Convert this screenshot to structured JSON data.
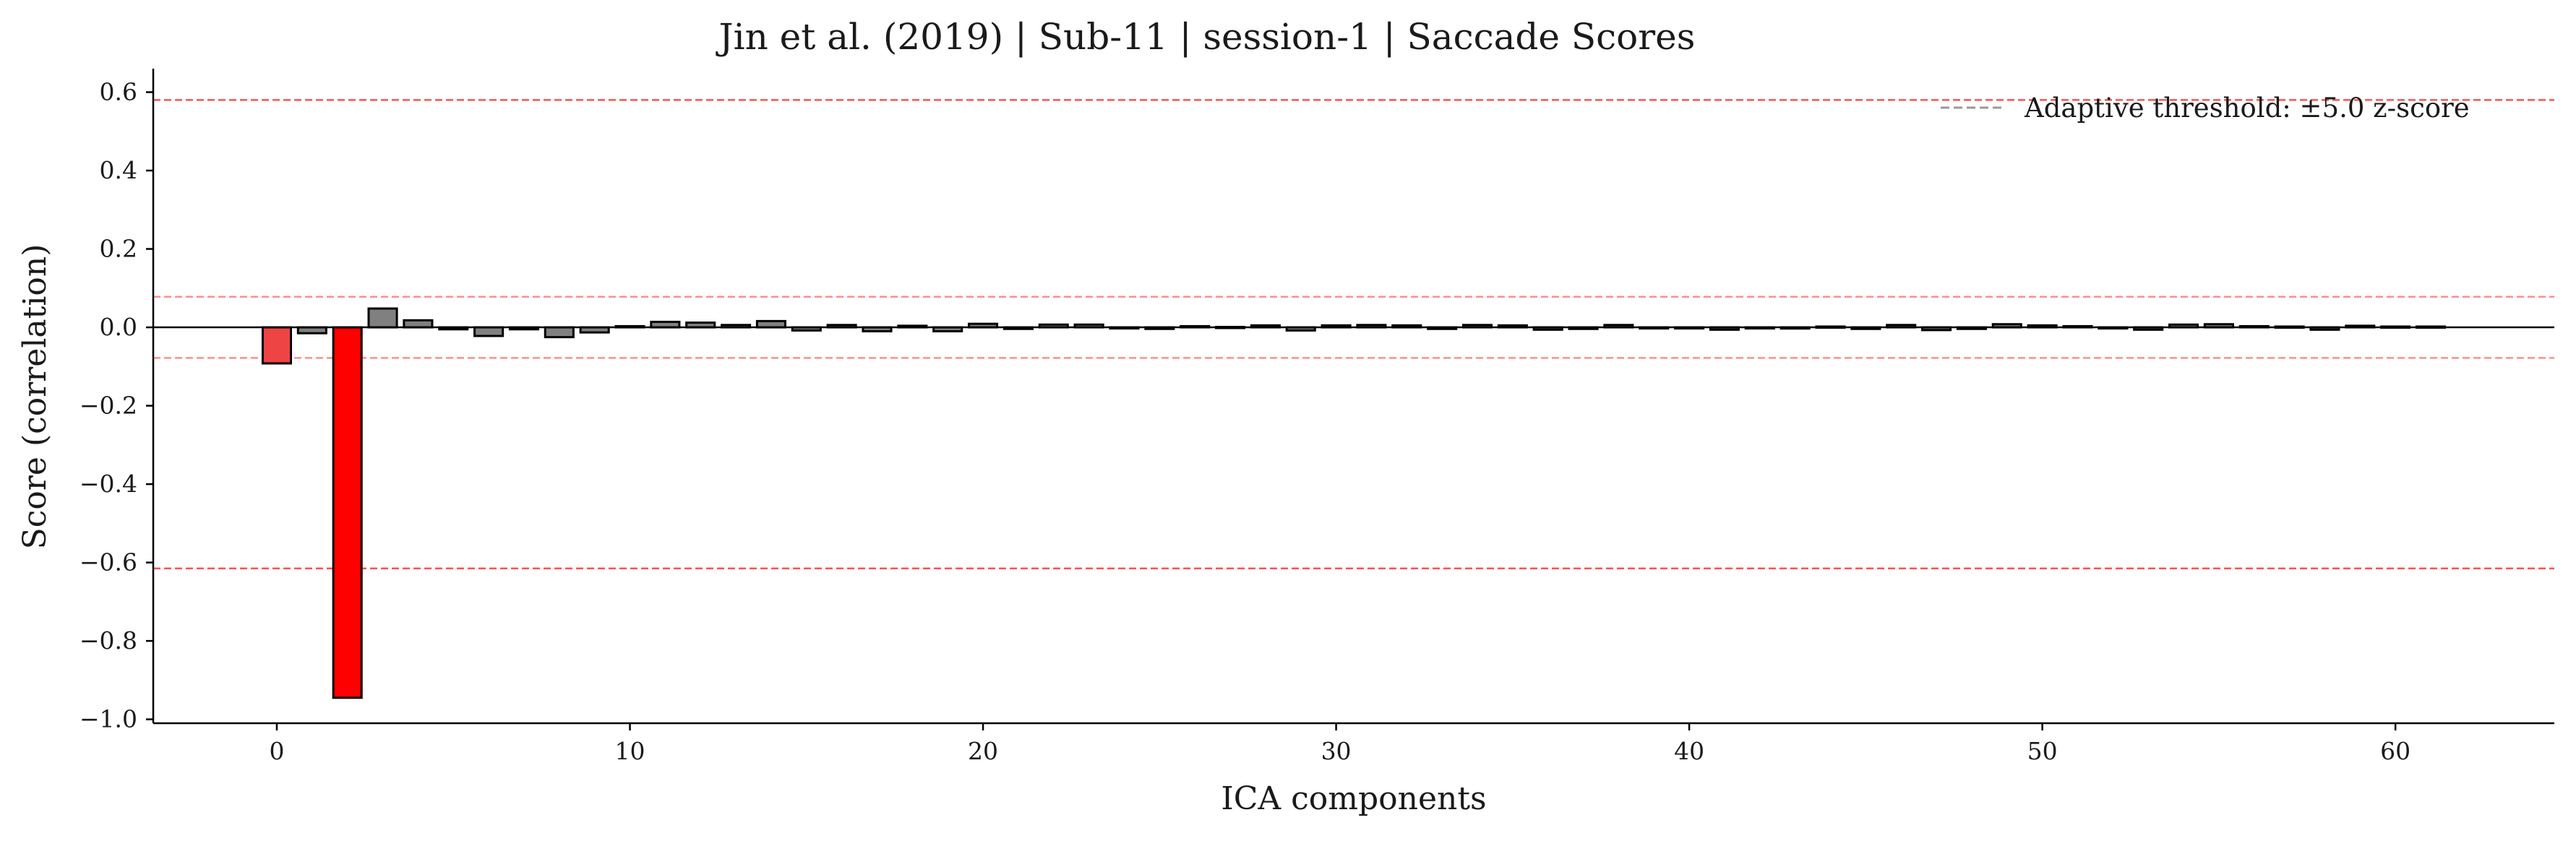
{
  "chart_data": {
    "type": "bar",
    "title": "Jin et al. (2019) | Sub-11 | session-1 | Saccade Scores",
    "xlabel": "ICA components",
    "ylabel": "Score (correlation)",
    "xlim": [
      -3.5,
      64.5
    ],
    "ylim": [
      -1.01,
      0.66
    ],
    "xticks": [
      0,
      10,
      20,
      30,
      40,
      50,
      60
    ],
    "xtick_labels": [
      "0",
      "10",
      "20",
      "30",
      "40",
      "50",
      "60"
    ],
    "yticks": [
      0.6,
      0.4,
      0.2,
      0.0,
      -0.2,
      -0.4,
      -0.6,
      -0.8,
      -1.0
    ],
    "ytick_labels": [
      "0.6",
      "0.4",
      "0.2",
      "0.0",
      "−0.2",
      "−0.4",
      "−0.6",
      "−0.8",
      "−1.0"
    ],
    "x": [
      0,
      1,
      2,
      3,
      4,
      5,
      6,
      7,
      8,
      9,
      10,
      11,
      12,
      13,
      14,
      15,
      16,
      17,
      18,
      19,
      20,
      21,
      22,
      23,
      24,
      25,
      26,
      27,
      28,
      29,
      30,
      31,
      32,
      33,
      34,
      35,
      36,
      37,
      38,
      39,
      40,
      41,
      42,
      43,
      44,
      45,
      46,
      47,
      48,
      49,
      50,
      51,
      52,
      53,
      54,
      55,
      56,
      57,
      58,
      59,
      60,
      61
    ],
    "values": [
      -0.092,
      -0.015,
      -0.945,
      0.048,
      0.018,
      -0.005,
      -0.022,
      -0.005,
      -0.025,
      -0.013,
      0.003,
      0.014,
      0.012,
      0.006,
      0.016,
      -0.008,
      0.006,
      -0.01,
      0.004,
      -0.01,
      0.009,
      -0.004,
      0.007,
      0.007,
      -0.002,
      -0.004,
      0.003,
      0.001,
      0.005,
      -0.008,
      0.005,
      0.006,
      0.005,
      -0.004,
      0.006,
      0.005,
      -0.006,
      -0.004,
      0.006,
      -0.001,
      -0.002,
      -0.006,
      -0.002,
      -0.003,
      0.002,
      -0.004,
      0.006,
      -0.007,
      -0.004,
      0.008,
      0.005,
      0.003,
      -0.002,
      -0.006,
      0.007,
      0.008,
      0.003,
      0.002,
      -0.006,
      0.004,
      0.002,
      0.002
    ],
    "bar_colors": [
      "#ee4444",
      "#808080",
      "#ff0000",
      "#808080",
      "#808080",
      "#808080",
      "#808080",
      "#808080",
      "#808080",
      "#808080",
      "#808080",
      "#808080",
      "#808080",
      "#808080",
      "#808080",
      "#808080",
      "#808080",
      "#808080",
      "#808080",
      "#808080",
      "#808080",
      "#808080",
      "#808080",
      "#808080",
      "#808080",
      "#808080",
      "#808080",
      "#808080",
      "#808080",
      "#808080",
      "#808080",
      "#808080",
      "#808080",
      "#808080",
      "#808080",
      "#808080",
      "#808080",
      "#808080",
      "#808080",
      "#808080",
      "#808080",
      "#808080",
      "#808080",
      "#808080",
      "#808080",
      "#808080",
      "#808080",
      "#808080",
      "#808080",
      "#808080",
      "#808080",
      "#808080",
      "#808080",
      "#808080",
      "#808080",
      "#808080",
      "#808080",
      "#808080",
      "#808080",
      "#808080",
      "#808080",
      "#808080"
    ],
    "threshold_lines": [
      {
        "value": 0.58,
        "opacity": 0.85
      },
      {
        "value": -0.615,
        "opacity": 0.85
      },
      {
        "value": 0.078,
        "opacity": 0.55
      },
      {
        "value": -0.078,
        "opacity": 0.55
      }
    ],
    "threshold_color": "#ff3333",
    "zero_line": true,
    "grid": false,
    "legend": {
      "placement": "top-right",
      "entries": [
        {
          "label": "Adaptive threshold: ±5.0 z-score",
          "style": "dashed",
          "color": "#999999"
        }
      ]
    }
  }
}
